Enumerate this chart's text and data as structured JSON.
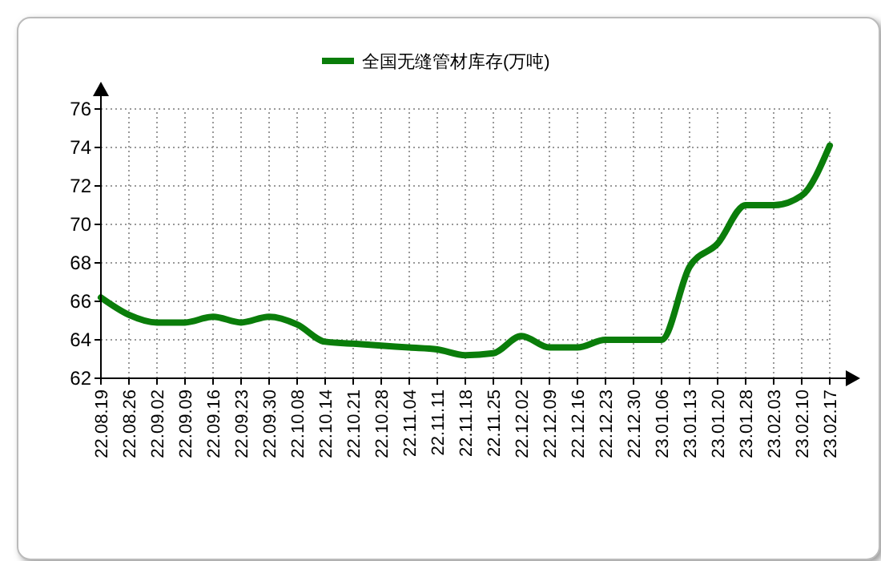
{
  "chart_data": {
    "type": "line",
    "categories": [
      "22.08.19",
      "22.08.26",
      "22.09.02",
      "22.09.09",
      "22.09.16",
      "22.09.23",
      "22.09.30",
      "22.10.08",
      "22.10.14",
      "22.10.21",
      "22.10.28",
      "22.11.04",
      "22.11.11",
      "22.11.18",
      "22.11.25",
      "22.12.02",
      "22.12.09",
      "22.12.16",
      "22.12.23",
      "22.12.30",
      "23.01.06",
      "23.01.13",
      "23.01.20",
      "23.01.28",
      "23.02.03",
      "23.02.10",
      "23.02.17"
    ],
    "series": [
      {
        "name": "全国无缝管材库存(万吨)",
        "color": "#0a7d0a",
        "values": [
          66.2,
          65.3,
          64.9,
          64.9,
          65.2,
          64.9,
          65.2,
          64.8,
          63.9,
          63.8,
          63.7,
          63.6,
          63.5,
          63.2,
          63.3,
          64.2,
          63.6,
          63.6,
          64.0,
          64.0,
          64.0,
          67.8,
          69.0,
          71.0,
          71.0,
          71.5,
          74.1
        ]
      }
    ],
    "ylim": [
      62,
      76
    ],
    "yticks": [
      62,
      64,
      66,
      68,
      70,
      72,
      74,
      76
    ],
    "grid": true,
    "legend": "top",
    "marker": "none",
    "line_style": "solid"
  }
}
